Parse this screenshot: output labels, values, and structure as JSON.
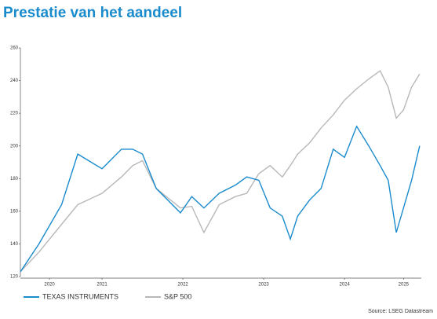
{
  "chart_data": {
    "type": "line",
    "title": "Prestatie van het aandeel",
    "x": [
      2020.49,
      2020.72,
      2021.0,
      2021.2,
      2021.5,
      2021.74,
      2021.88,
      2022.0,
      2022.17,
      2022.47,
      2022.61,
      2022.76,
      2022.95,
      2023.15,
      2023.29,
      2023.44,
      2023.58,
      2023.73,
      2023.83,
      2023.92,
      2024.07,
      2024.21,
      2024.36,
      2024.5,
      2024.65,
      2024.8,
      2024.94,
      2025.04,
      2025.14,
      2025.23,
      2025.33,
      2025.43
    ],
    "series": [
      {
        "name": "TEXAS INSTRUMENTS",
        "color": "#1a8bcc",
        "values": [
          123,
          140,
          164,
          195,
          186,
          198,
          198,
          195,
          174,
          159,
          169,
          162,
          171,
          176,
          181,
          179,
          162,
          157,
          143,
          157,
          167,
          174,
          198,
          193,
          212,
          200,
          188,
          179,
          147,
          162,
          179,
          200
        ]
      },
      {
        "name": "S&P 500",
        "color": "#b8b8b8",
        "values": [
          123,
          135,
          152,
          164,
          171,
          181,
          188,
          191,
          174,
          162,
          163,
          147,
          164,
          169,
          171,
          183,
          188,
          181,
          188,
          195,
          202,
          211,
          219,
          228,
          235,
          241,
          246,
          236,
          217,
          222,
          236,
          244
        ]
      }
    ],
    "xlim": [
      2020.49,
      2025.45
    ],
    "xticks": [
      {
        "value": 2020.85,
        "label": "2020"
      },
      {
        "value": 2021.5,
        "label": "2021"
      },
      {
        "value": 2022.5,
        "label": "2022"
      },
      {
        "value": 2023.5,
        "label": "2023"
      },
      {
        "value": 2024.5,
        "label": "2024"
      },
      {
        "value": 2025.23,
        "label": "2025"
      }
    ],
    "ylim": [
      120,
      260
    ],
    "yticks": [
      120,
      140,
      160,
      180,
      200,
      220,
      240,
      260
    ],
    "source": "Source: LSEG Datastream"
  }
}
